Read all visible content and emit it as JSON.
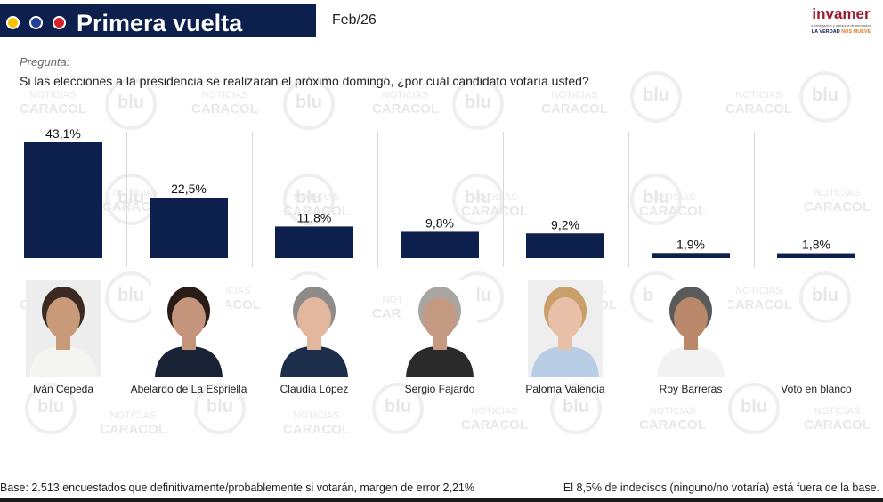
{
  "header": {
    "title": "Primera vuelta",
    "date": "Feb/26",
    "dot_colors": [
      "#f5c400",
      "#1f3f99",
      "#d6242f"
    ],
    "bar_color": "#0d1f4c"
  },
  "logo": {
    "name": "invamer",
    "subtitle": "investigación y asesoría de mercados",
    "tagline_a": "LA VERDAD",
    "tagline_b": "NOS MUEVE"
  },
  "question": {
    "label": "Pregunta:",
    "text": "Si las elecciones a la presidencia se realizaran el próximo domingo, ¿por cuál candidato votaría usted?"
  },
  "watermark": {
    "blu": "blu",
    "nc1": "NOTICIAS",
    "nc2": "CARACOL"
  },
  "chart_data": {
    "type": "bar",
    "categories": [
      "Iván Cepeda",
      "Abelardo de La Espriella",
      "Claudia López",
      "Sergio Fajardo",
      "Paloma Valencia",
      "Roy Barreras",
      "Voto en blanco"
    ],
    "values": [
      43.1,
      22.5,
      11.8,
      9.8,
      9.2,
      1.9,
      1.8
    ],
    "value_labels": [
      "43,1%",
      "22,5%",
      "11,8%",
      "9,8%",
      "9,2%",
      "1,9%",
      "1,8%"
    ],
    "ylim": [
      0,
      43.1
    ],
    "bar_color": "#0d1f4c",
    "grid": false,
    "legend": "none"
  },
  "candidates": [
    {
      "label": "Iván Cepeda",
      "photo": "portrait-photo",
      "bg": "#ededed",
      "shirt": "#f4f4f0",
      "skin": "#c99a7a",
      "hair": "#3a2a22"
    },
    {
      "label": "Abelardo de La Espriella",
      "photo": "portrait-photo",
      "bg": "#ffffff",
      "shirt": "#1a2236",
      "skin": "#c4957a",
      "hair": "#2a1d17"
    },
    {
      "label": "Claudia López",
      "photo": "portrait-photo",
      "bg": "#ffffff",
      "shirt": "#1c2e4a",
      "skin": "#e3b79e",
      "hair": "#8f8b88"
    },
    {
      "label": "Sergio Fajardo",
      "photo": "portrait-photo",
      "bg": "#ffffff",
      "shirt": "#2a2a2a",
      "skin": "#c49a82",
      "hair": "#a9a6a2"
    },
    {
      "label": "Paloma Valencia",
      "photo": "portrait-photo",
      "bg": "#eeeeee",
      "shirt": "#b9cde6",
      "skin": "#e8c0a8",
      "hair": "#c9a06a"
    },
    {
      "label": "Roy Barreras",
      "photo": "portrait-photo",
      "bg": "#ffffff",
      "shirt": "#f2f2f2",
      "skin": "#b9876a",
      "hair": "#5a5a5a"
    },
    {
      "label": "Voto en blanco",
      "photo": "",
      "bg": "",
      "shirt": "",
      "skin": "",
      "hair": ""
    }
  ],
  "footer": {
    "left": "Base: 2.513 encuestados que definitivamente/probablemente si votarán, margen de error 2,21%",
    "right": "El 8,5% de indecisos (ninguno/no votaría) está fuera de la base."
  }
}
